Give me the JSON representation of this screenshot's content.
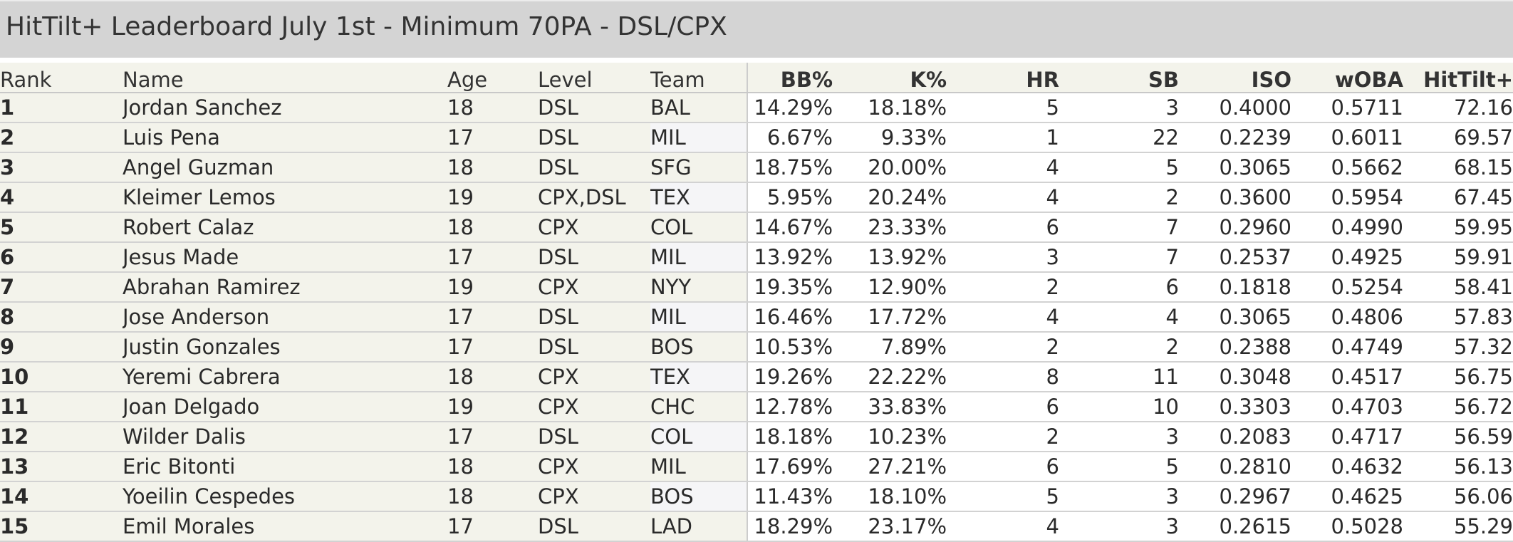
{
  "title": "HitTilt+ Leaderboard July 1st - Minimum 70PA - DSL/CPX",
  "headers": {
    "rank": "Rank",
    "name": "Name",
    "age": "Age",
    "level": "Level",
    "team": "Team",
    "bb": "BB%",
    "k": "K%",
    "hr": "HR",
    "sb": "SB",
    "iso": "ISO",
    "woba": "wOBA",
    "hittilt": "HitTilt+"
  },
  "rows": [
    {
      "rank": "1",
      "name": "Jordan Sanchez",
      "age": "18",
      "level": "DSL",
      "team": "BAL",
      "bb": "14.29%",
      "k": "18.18%",
      "hr": "5",
      "sb": "3",
      "iso": "0.4000",
      "woba": "0.5711",
      "hittilt": "72.16"
    },
    {
      "rank": "2",
      "name": "Luis Pena",
      "age": "17",
      "level": "DSL",
      "team": "MIL",
      "bb": "6.67%",
      "k": "9.33%",
      "hr": "1",
      "sb": "22",
      "iso": "0.2239",
      "woba": "0.6011",
      "hittilt": "69.57"
    },
    {
      "rank": "3",
      "name": "Angel Guzman",
      "age": "18",
      "level": "DSL",
      "team": "SFG",
      "bb": "18.75%",
      "k": "20.00%",
      "hr": "4",
      "sb": "5",
      "iso": "0.3065",
      "woba": "0.5662",
      "hittilt": "68.15"
    },
    {
      "rank": "4",
      "name": "Kleimer Lemos",
      "age": "19",
      "level": "CPX,DSL",
      "team": "TEX",
      "bb": "5.95%",
      "k": "20.24%",
      "hr": "4",
      "sb": "2",
      "iso": "0.3600",
      "woba": "0.5954",
      "hittilt": "67.45"
    },
    {
      "rank": "5",
      "name": "Robert Calaz",
      "age": "18",
      "level": "CPX",
      "team": "COL",
      "bb": "14.67%",
      "k": "23.33%",
      "hr": "6",
      "sb": "7",
      "iso": "0.2960",
      "woba": "0.4990",
      "hittilt": "59.95"
    },
    {
      "rank": "6",
      "name": "Jesus Made",
      "age": "17",
      "level": "DSL",
      "team": "MIL",
      "bb": "13.92%",
      "k": "13.92%",
      "hr": "3",
      "sb": "7",
      "iso": "0.2537",
      "woba": "0.4925",
      "hittilt": "59.91"
    },
    {
      "rank": "7",
      "name": "Abrahan Ramirez",
      "age": "19",
      "level": "CPX",
      "team": "NYY",
      "bb": "19.35%",
      "k": "12.90%",
      "hr": "2",
      "sb": "6",
      "iso": "0.1818",
      "woba": "0.5254",
      "hittilt": "58.41"
    },
    {
      "rank": "8",
      "name": "Jose Anderson",
      "age": "17",
      "level": "DSL",
      "team": "MIL",
      "bb": "16.46%",
      "k": "17.72%",
      "hr": "4",
      "sb": "4",
      "iso": "0.3065",
      "woba": "0.4806",
      "hittilt": "57.83"
    },
    {
      "rank": "9",
      "name": "Justin Gonzales",
      "age": "17",
      "level": "DSL",
      "team": "BOS",
      "bb": "10.53%",
      "k": "7.89%",
      "hr": "2",
      "sb": "2",
      "iso": "0.2388",
      "woba": "0.4749",
      "hittilt": "57.32"
    },
    {
      "rank": "10",
      "name": "Yeremi Cabrera",
      "age": "18",
      "level": "CPX",
      "team": "TEX",
      "bb": "19.26%",
      "k": "22.22%",
      "hr": "8",
      "sb": "11",
      "iso": "0.3048",
      "woba": "0.4517",
      "hittilt": "56.75"
    },
    {
      "rank": "11",
      "name": "Joan Delgado",
      "age": "19",
      "level": "CPX",
      "team": "CHC",
      "bb": "12.78%",
      "k": "33.83%",
      "hr": "6",
      "sb": "10",
      "iso": "0.3303",
      "woba": "0.4703",
      "hittilt": "56.72"
    },
    {
      "rank": "12",
      "name": "Wilder Dalis",
      "age": "17",
      "level": "DSL",
      "team": "COL",
      "bb": "18.18%",
      "k": "10.23%",
      "hr": "2",
      "sb": "3",
      "iso": "0.2083",
      "woba": "0.4717",
      "hittilt": "56.59"
    },
    {
      "rank": "13",
      "name": "Eric Bitonti",
      "age": "18",
      "level": "CPX",
      "team": "MIL",
      "bb": "17.69%",
      "k": "27.21%",
      "hr": "6",
      "sb": "5",
      "iso": "0.2810",
      "woba": "0.4632",
      "hittilt": "56.13"
    },
    {
      "rank": "14",
      "name": "Yoeilin Cespedes",
      "age": "18",
      "level": "CPX",
      "team": "BOS",
      "bb": "11.43%",
      "k": "18.10%",
      "hr": "5",
      "sb": "3",
      "iso": "0.2967",
      "woba": "0.4625",
      "hittilt": "56.06"
    },
    {
      "rank": "15",
      "name": "Emil Morales",
      "age": "17",
      "level": "DSL",
      "team": "LAD",
      "bb": "18.29%",
      "k": "23.17%",
      "hr": "4",
      "sb": "3",
      "iso": "0.2615",
      "woba": "0.5028",
      "hittilt": "55.29"
    }
  ],
  "colors": {
    "title_bar": "#d4d4d4",
    "left_block": "#f3f3eb",
    "team_alt": "#f5f5f7",
    "text_dark": "#262626",
    "text_muted": "#5f5f55"
  }
}
